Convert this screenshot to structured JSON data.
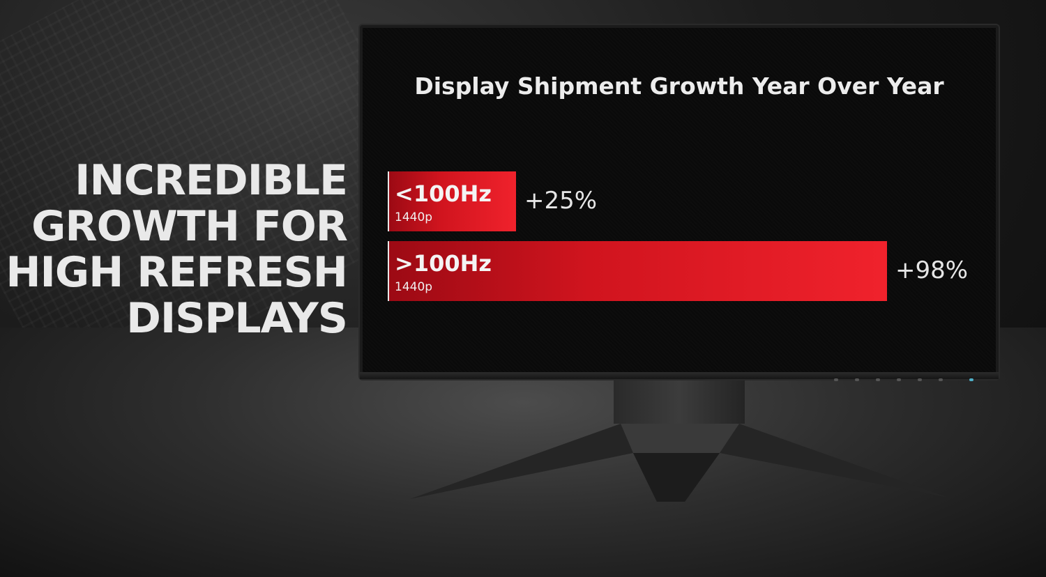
{
  "headline": [
    "INCREDIBLE",
    "GROWTH FOR",
    "HIGH REFRESH",
    "DISPLAYS"
  ],
  "chart_data": {
    "type": "bar",
    "orientation": "horizontal",
    "title": "Display Shipment Growth Year Over Year",
    "categories": [
      "<100Hz",
      ">100Hz"
    ],
    "subcategories": [
      "1440p",
      "1440p"
    ],
    "values": [
      25,
      98
    ],
    "value_labels": [
      "+25%",
      "+98%"
    ],
    "xlim": [
      0,
      98
    ],
    "bar_color": "#e01a24"
  }
}
